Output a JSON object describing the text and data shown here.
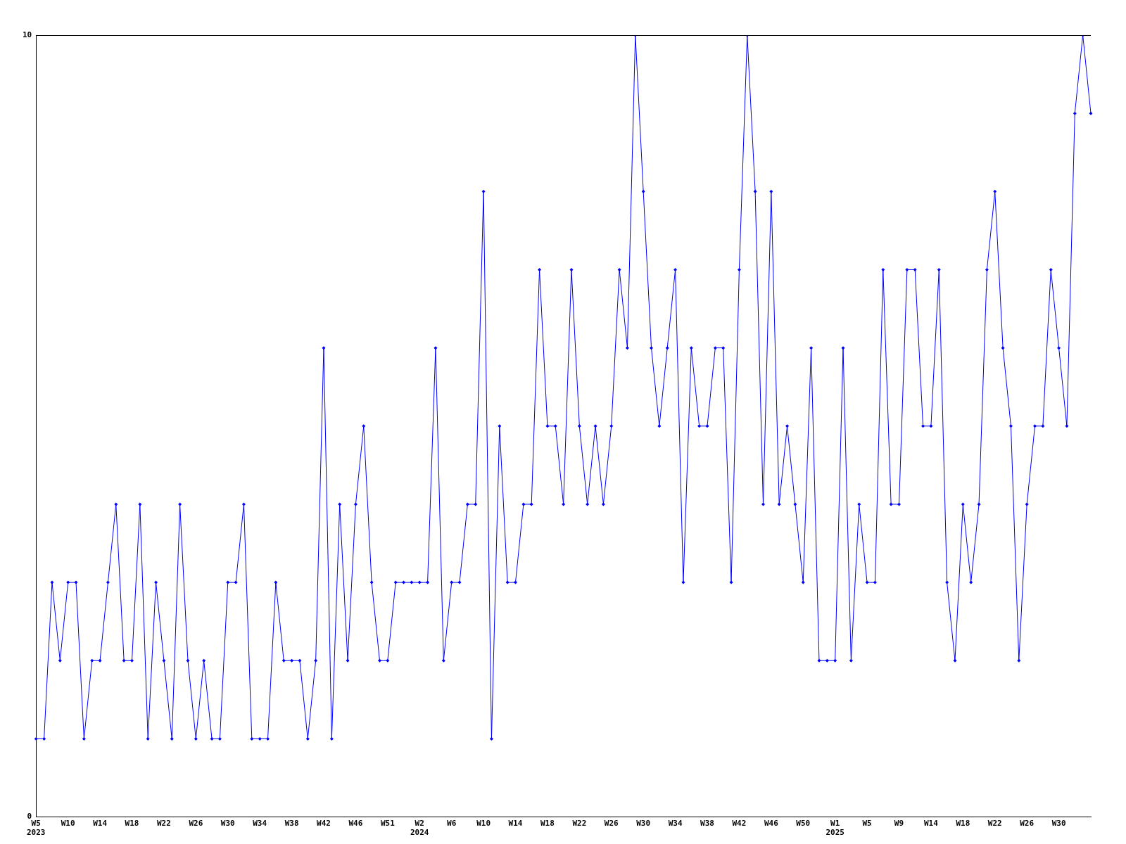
{
  "chart_data": {
    "type": "line",
    "categories": [
      "W5\n2023",
      null,
      null,
      null,
      "W10",
      null,
      null,
      null,
      "W14",
      null,
      null,
      null,
      "W18",
      null,
      null,
      null,
      "W22",
      null,
      null,
      null,
      "W26",
      null,
      null,
      null,
      "W30",
      null,
      null,
      null,
      "W34",
      null,
      null,
      null,
      "W38",
      null,
      null,
      null,
      "W42",
      null,
      null,
      null,
      "W46",
      null,
      null,
      null,
      "W51",
      null,
      null,
      null,
      "W2\n2024",
      null,
      null,
      null,
      "W6",
      null,
      null,
      null,
      "W10",
      null,
      null,
      null,
      "W14",
      null,
      null,
      null,
      "W18",
      null,
      null,
      null,
      "W22",
      null,
      null,
      null,
      "W26",
      null,
      null,
      null,
      "W30",
      null,
      null,
      null,
      "W34",
      null,
      null,
      null,
      "W38",
      null,
      null,
      null,
      "W42",
      null,
      null,
      null,
      "W46",
      null,
      null,
      null,
      "W50",
      null,
      null,
      null,
      "W1\n2025",
      null,
      null,
      null,
      "W5",
      null,
      null,
      null,
      "W9",
      null,
      null,
      null,
      "W14",
      null,
      null,
      null,
      "W18",
      null,
      null,
      null,
      "W22",
      null,
      null,
      null,
      "W26",
      null,
      null,
      null,
      "W30",
      null,
      null,
      null,
      null
    ],
    "series": [
      {
        "color": "#0000ff",
        "values": [
          1,
          1,
          3,
          2,
          3,
          3,
          1,
          2,
          2,
          3,
          4,
          2,
          2,
          4,
          1,
          3,
          2,
          1,
          4,
          2,
          1,
          2,
          1,
          1,
          3,
          3,
          4,
          1,
          1,
          1,
          3,
          2,
          2,
          2,
          1,
          2,
          6,
          1,
          4,
          2,
          4,
          5,
          3,
          2,
          2,
          3,
          3,
          3,
          3,
          3,
          6,
          2,
          3,
          3,
          4,
          4,
          8,
          1,
          5,
          3,
          3,
          4,
          4,
          7,
          5,
          5,
          4,
          7,
          5,
          4,
          5,
          4,
          5,
          7,
          6,
          10,
          8,
          6,
          5,
          6,
          7,
          3,
          6,
          5,
          5,
          6,
          6,
          3,
          7,
          10,
          8,
          4,
          8,
          4,
          5,
          4,
          3,
          6,
          2,
          2,
          2,
          6,
          2,
          4,
          3,
          3,
          7,
          4,
          4,
          7,
          7,
          5,
          5,
          7,
          3,
          2,
          4,
          3,
          4,
          7,
          8,
          6,
          5,
          2,
          4,
          5,
          5,
          7,
          6,
          5,
          9,
          10,
          9
        ]
      }
    ],
    "ylim": [
      0,
      10
    ],
    "yticks": [
      0,
      10
    ],
    "grid": false,
    "legend": false,
    "marker": "diamond",
    "line_style": "solid"
  }
}
